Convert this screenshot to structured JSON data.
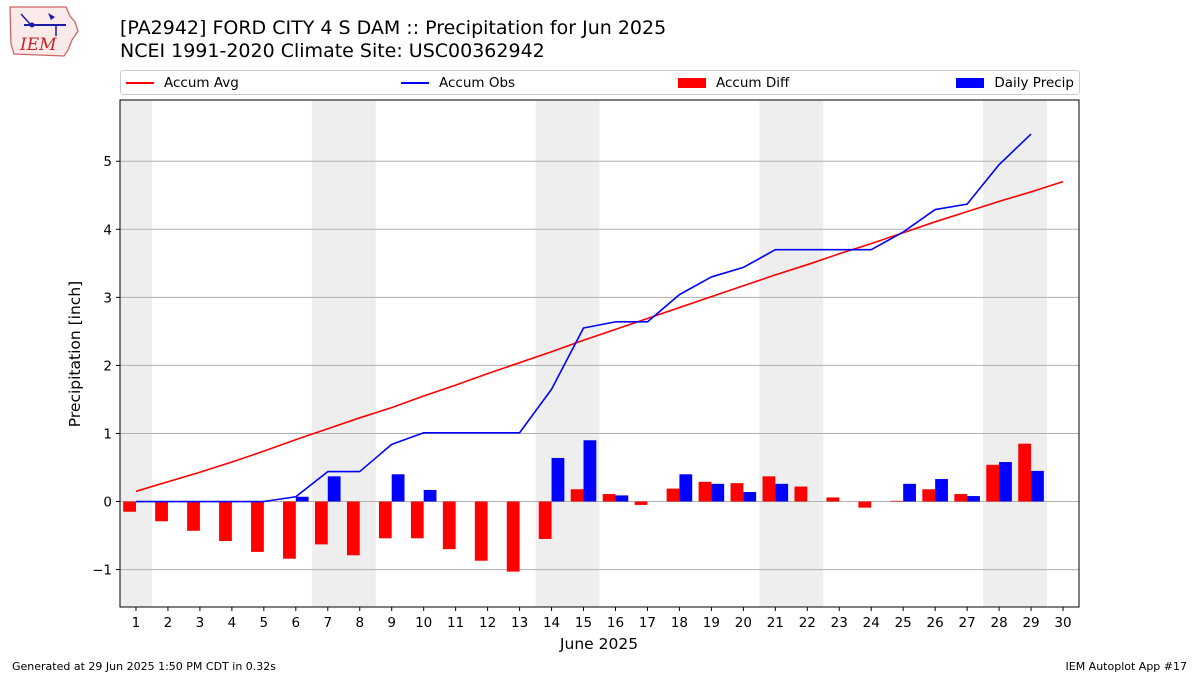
{
  "header": {
    "title_line1": "[PA2942] FORD CITY 4 S DAM :: Precipitation for Jun 2025",
    "title_line2": "NCEI 1991-2020 Climate Site: USC00362942"
  },
  "logo": {
    "text": "IEM",
    "icon": "iowa-state-outline-weather-vane-icon"
  },
  "legend": [
    {
      "label": "Accum Avg",
      "kind": "line",
      "color": "#ff0000"
    },
    {
      "label": "Accum Obs",
      "kind": "line",
      "color": "#0000ff"
    },
    {
      "label": "Accum Diff",
      "kind": "bar",
      "color": "#ff0000"
    },
    {
      "label": "Daily Precip",
      "kind": "bar",
      "color": "#0000ff"
    }
  ],
  "footer": {
    "left": "Generated at 29 Jun 2025 1:50 PM CDT in 0.32s",
    "right": "IEM Autoplot App #17"
  },
  "chart_data": {
    "type": "bar",
    "xlabel": "June 2025",
    "ylabel": "Precipitation [inch]",
    "xlim": [
      0.5,
      30.5
    ],
    "ylim": [
      -1.55,
      5.9
    ],
    "x_ticks": [
      1,
      2,
      3,
      4,
      5,
      6,
      7,
      8,
      9,
      10,
      11,
      12,
      13,
      14,
      15,
      16,
      17,
      18,
      19,
      20,
      21,
      22,
      23,
      24,
      25,
      26,
      27,
      28,
      29,
      30
    ],
    "y_ticks": [
      -1,
      0,
      1,
      2,
      3,
      4,
      5
    ],
    "y_tick_labels": [
      "−1",
      "0",
      "1",
      "2",
      "3",
      "4",
      "5"
    ],
    "grid": "horizontal",
    "legend_position": "top",
    "weekend_shading": [
      [
        0.5,
        1.5
      ],
      [
        6.5,
        8.5
      ],
      [
        13.5,
        15.5
      ],
      [
        20.5,
        22.5
      ],
      [
        27.5,
        29.5
      ]
    ],
    "series": [
      {
        "name": "Accum Avg",
        "kind": "line",
        "color": "#ff0000",
        "x": [
          1,
          2,
          3,
          4,
          5,
          6,
          7,
          8,
          9,
          10,
          11,
          12,
          13,
          14,
          15,
          16,
          17,
          18,
          19,
          20,
          21,
          22,
          23,
          24,
          25,
          26,
          27,
          28,
          29,
          30
        ],
        "values": [
          0.15,
          0.29,
          0.43,
          0.58,
          0.74,
          0.91,
          1.07,
          1.23,
          1.38,
          1.55,
          1.71,
          1.88,
          2.04,
          2.2,
          2.37,
          2.53,
          2.69,
          2.85,
          3.01,
          3.17,
          3.33,
          3.48,
          3.64,
          3.79,
          3.95,
          4.11,
          4.26,
          4.41,
          4.55,
          4.7
        ]
      },
      {
        "name": "Accum Obs",
        "kind": "line",
        "color": "#0000ff",
        "x": [
          1,
          2,
          3,
          4,
          5,
          6,
          7,
          8,
          9,
          10,
          11,
          12,
          13,
          14,
          15,
          16,
          17,
          18,
          19,
          20,
          21,
          22,
          23,
          24,
          25,
          26,
          27,
          28,
          29
        ],
        "values": [
          0,
          0,
          0,
          0,
          0,
          0.07,
          0.44,
          0.44,
          0.84,
          1.01,
          1.01,
          1.01,
          1.01,
          1.65,
          2.55,
          2.64,
          2.64,
          3.04,
          3.3,
          3.44,
          3.7,
          3.7,
          3.7,
          3.7,
          3.96,
          4.29,
          4.37,
          4.95,
          5.4
        ]
      },
      {
        "name": "Accum Diff",
        "kind": "bar",
        "color": "#ff0000",
        "x": [
          1,
          2,
          3,
          4,
          5,
          6,
          7,
          8,
          9,
          10,
          11,
          12,
          13,
          14,
          15,
          16,
          17,
          18,
          19,
          20,
          21,
          22,
          23,
          24,
          25,
          26,
          27,
          28,
          29
        ],
        "values": [
          -0.15,
          -0.29,
          -0.43,
          -0.58,
          -0.74,
          -0.84,
          -0.63,
          -0.79,
          -0.54,
          -0.54,
          -0.7,
          -0.87,
          -1.03,
          -0.55,
          0.18,
          0.11,
          -0.05,
          0.19,
          0.29,
          0.27,
          0.37,
          0.22,
          0.06,
          -0.09,
          0.01,
          0.18,
          0.11,
          0.54,
          0.85
        ]
      },
      {
        "name": "Daily Precip",
        "kind": "bar",
        "color": "#0000ff",
        "x": [
          1,
          2,
          3,
          4,
          5,
          6,
          7,
          8,
          9,
          10,
          11,
          12,
          13,
          14,
          15,
          16,
          17,
          18,
          19,
          20,
          21,
          22,
          23,
          24,
          25,
          26,
          27,
          28,
          29
        ],
        "values": [
          0,
          0,
          0,
          0,
          0,
          0.07,
          0.37,
          0,
          0.4,
          0.17,
          0,
          0,
          0,
          0.64,
          0.9,
          0.09,
          0,
          0.4,
          0.26,
          0.14,
          0.26,
          0,
          0,
          0,
          0.26,
          0.33,
          0.08,
          0.58,
          0.45
        ]
      }
    ]
  }
}
